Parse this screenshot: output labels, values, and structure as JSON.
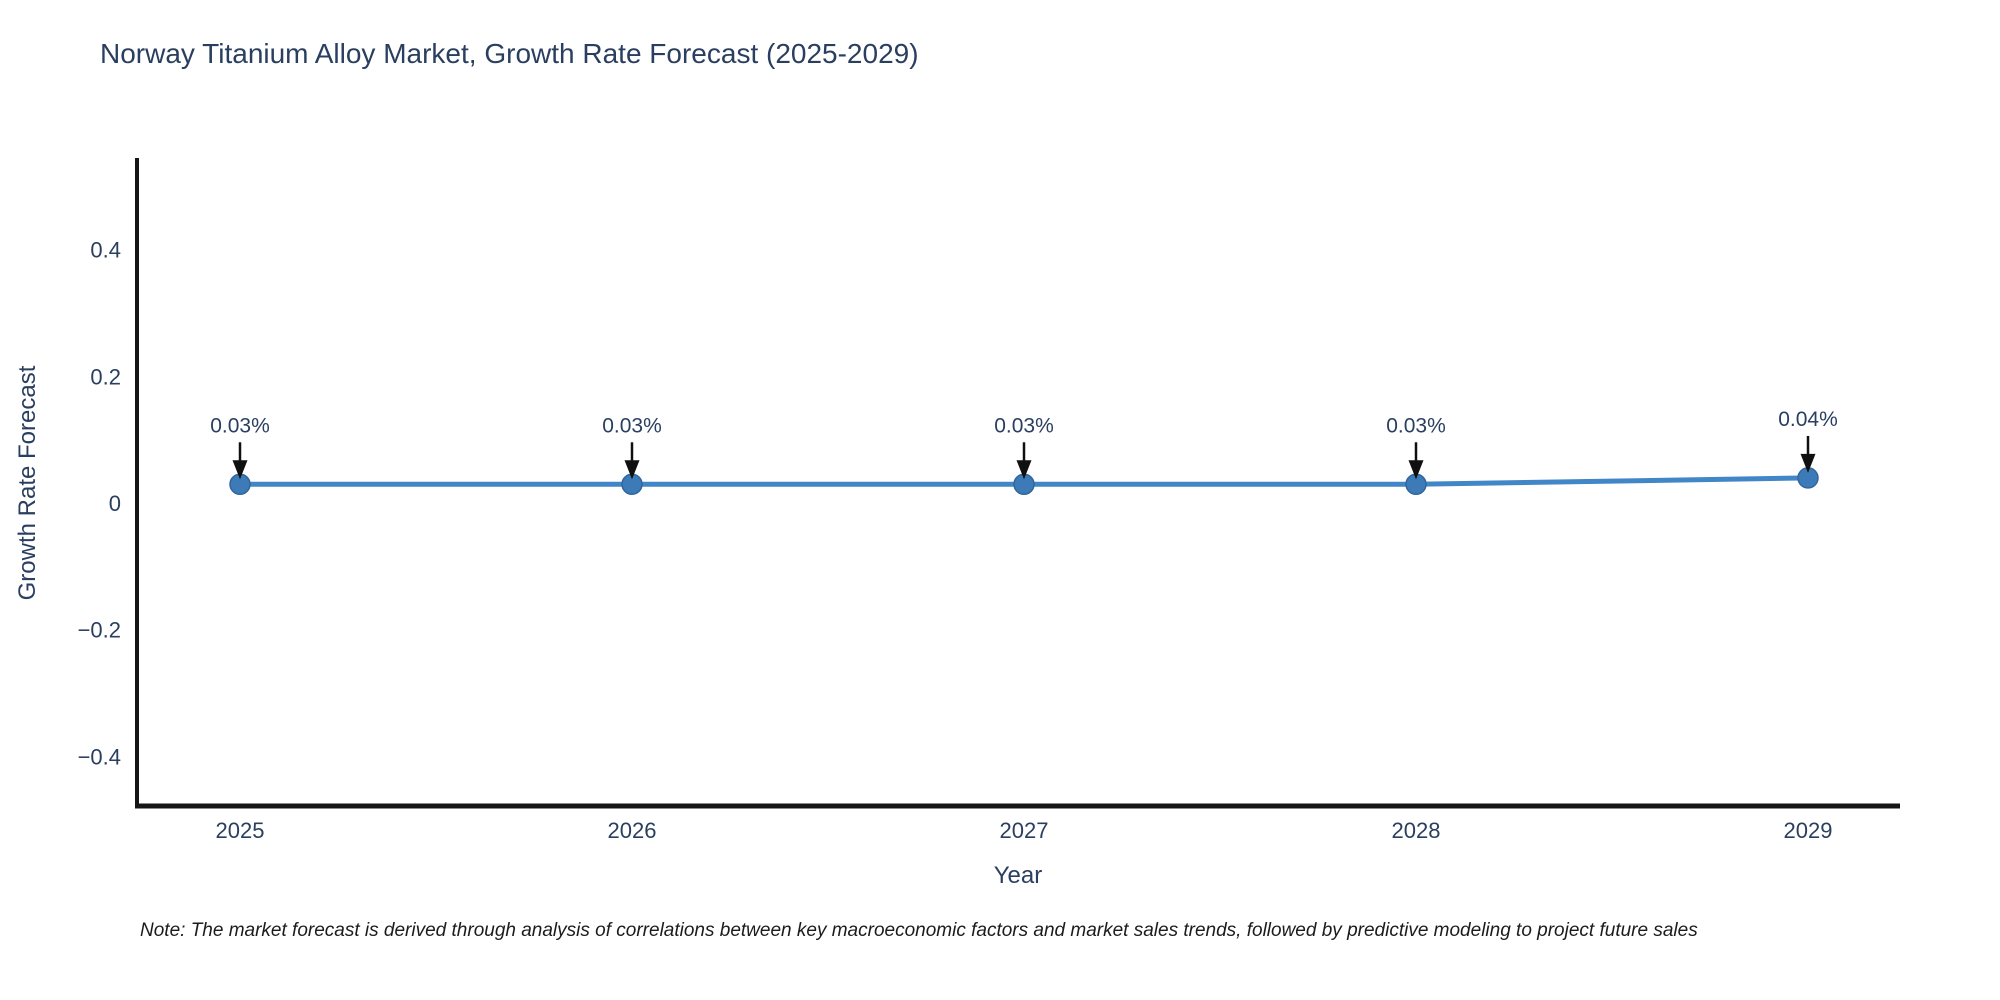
{
  "background": "#ffffff",
  "header": {
    "title": "Norway Titanium Alloy Market, Growth Rate Forecast (2025-2029)"
  },
  "footnote": "Note: The market forecast is derived through analysis of correlations between key macroeconomic factors and market sales trends, followed by predictive modeling to project future sales",
  "colors": {
    "title_text": "#2a3f5f",
    "tick_text": "#2a3f5f",
    "annotation_text": "#2a3f5f",
    "axis_line": "#151515",
    "series_line": "#4186c6",
    "marker_fill": "#3d7ab8",
    "marker_edge": "#33669c",
    "arrow": "#101010",
    "note_text": "#1c1c1c"
  },
  "chart_data": {
    "type": "line",
    "title": "Norway Titanium Alloy Market, Growth Rate Forecast (2025-2029)",
    "xlabel": "Year",
    "ylabel": "Growth Rate Forecast",
    "x": [
      2025,
      2026,
      2027,
      2028,
      2029
    ],
    "series": [
      {
        "name": "Growth Rate Forecast",
        "values": [
          0.03,
          0.03,
          0.03,
          0.03,
          0.04
        ]
      }
    ],
    "point_labels": [
      "0.03%",
      "0.03%",
      "0.03%",
      "0.03%",
      "0.04%"
    ],
    "ylim": [
      -0.478,
      0.542
    ],
    "yticks": [
      0.4,
      0.2,
      0,
      -0.2,
      -0.4
    ],
    "ytick_labels": [
      "0.4",
      "0.2",
      "0",
      "−0.2",
      "−0.4"
    ],
    "grid": false,
    "legend": "none"
  }
}
